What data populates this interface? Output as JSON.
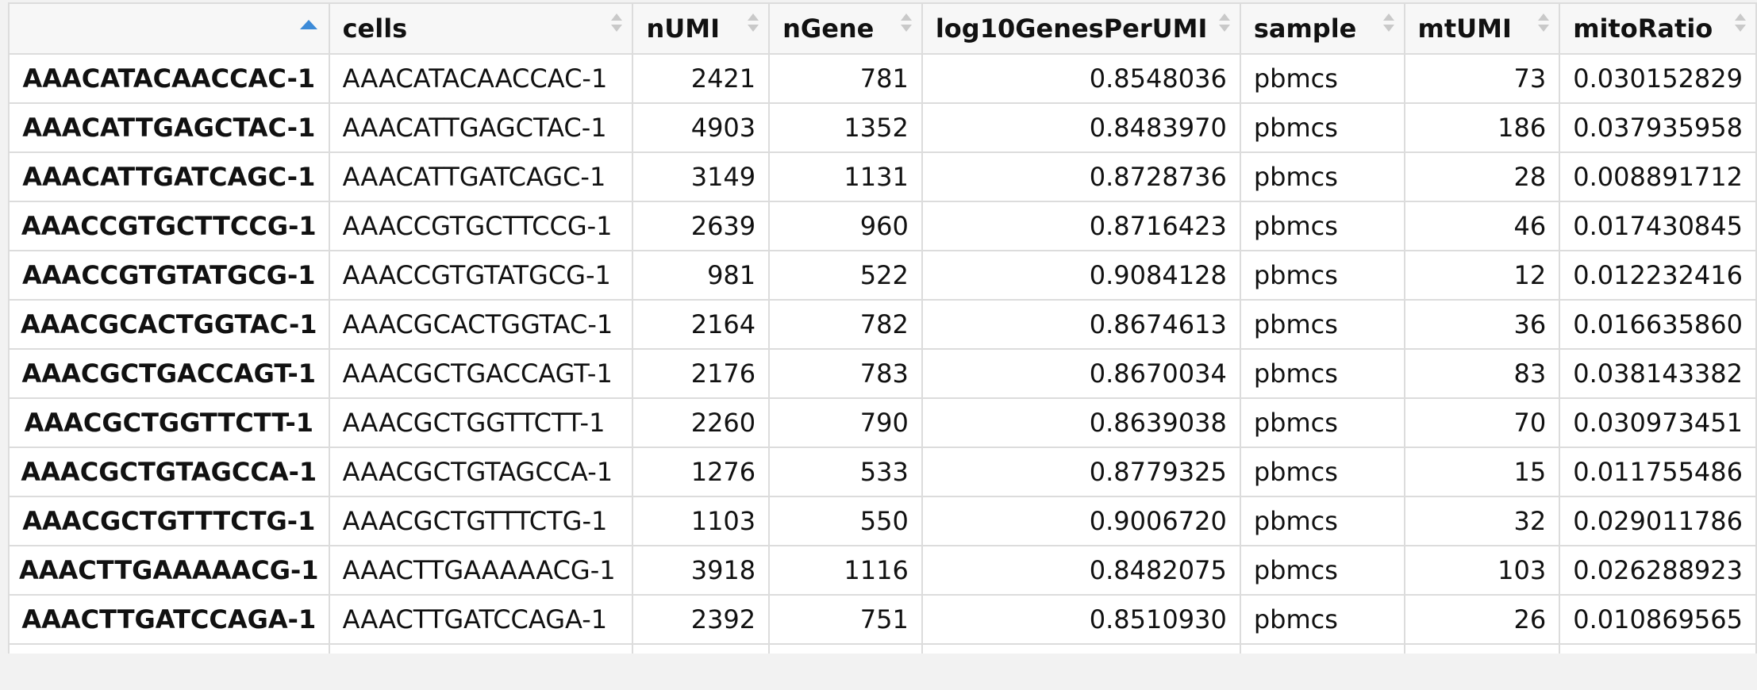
{
  "table": {
    "columns": [
      "",
      "cells",
      "nUMI",
      "nGene",
      "log10GenesPerUMI",
      "sample",
      "mtUMI",
      "mitoRatio"
    ],
    "sort_column_index": 0,
    "sort_direction": "ascending",
    "accent_color": "#3d8bd8",
    "rows": [
      [
        "AAACATACAACCAC-1",
        "AAACATACAACCAC-1",
        "2421",
        "781",
        "0.8548036",
        "pbmcs",
        "73",
        "0.030152829"
      ],
      [
        "AAACATTGAGCTAC-1",
        "AAACATTGAGCTAC-1",
        "4903",
        "1352",
        "0.8483970",
        "pbmcs",
        "186",
        "0.037935958"
      ],
      [
        "AAACATTGATCAGC-1",
        "AAACATTGATCAGC-1",
        "3149",
        "1131",
        "0.8728736",
        "pbmcs",
        "28",
        "0.008891712"
      ],
      [
        "AAACCGTGCTTCCG-1",
        "AAACCGTGCTTCCG-1",
        "2639",
        "960",
        "0.8716423",
        "pbmcs",
        "46",
        "0.017430845"
      ],
      [
        "AAACCGTGTATGCG-1",
        "AAACCGTGTATGCG-1",
        "981",
        "522",
        "0.9084128",
        "pbmcs",
        "12",
        "0.012232416"
      ],
      [
        "AAACGCACTGGTAC-1",
        "AAACGCACTGGTAC-1",
        "2164",
        "782",
        "0.8674613",
        "pbmcs",
        "36",
        "0.016635860"
      ],
      [
        "AAACGCTGACCAGT-1",
        "AAACGCTGACCAGT-1",
        "2176",
        "783",
        "0.8670034",
        "pbmcs",
        "83",
        "0.038143382"
      ],
      [
        "AAACGCTGGTTCTT-1",
        "AAACGCTGGTTCTT-1",
        "2260",
        "790",
        "0.8639038",
        "pbmcs",
        "70",
        "0.030973451"
      ],
      [
        "AAACGCTGTAGCCA-1",
        "AAACGCTGTAGCCA-1",
        "1276",
        "533",
        "0.8779325",
        "pbmcs",
        "15",
        "0.011755486"
      ],
      [
        "AAACGCTGTTTCTG-1",
        "AAACGCTGTTTCTG-1",
        "1103",
        "550",
        "0.9006720",
        "pbmcs",
        "32",
        "0.029011786"
      ],
      [
        "AAACTTGAAAAACG-1",
        "AAACTTGAAAAACG-1",
        "3918",
        "1116",
        "0.8482075",
        "pbmcs",
        "103",
        "0.026288923"
      ],
      [
        "AAACTTGATCCAGA-1",
        "AAACTTGATCCAGA-1",
        "2392",
        "751",
        "0.8510930",
        "pbmcs",
        "26",
        "0.010869565"
      ]
    ]
  }
}
